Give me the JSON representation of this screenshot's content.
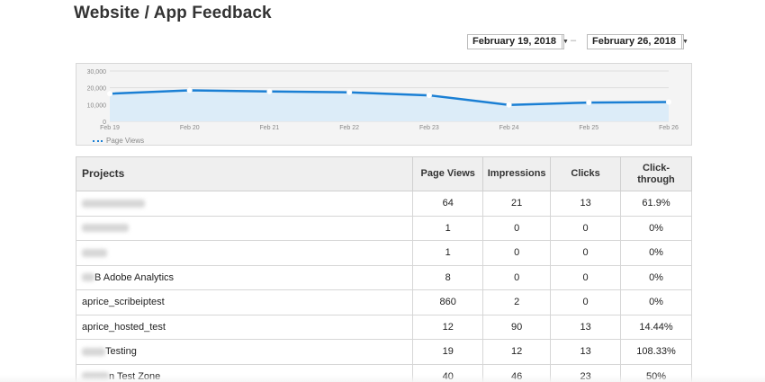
{
  "page": {
    "title": "Website / App Feedback"
  },
  "date_range": {
    "start": "February 19, 2018",
    "separator": "–",
    "end": "February 26, 2018"
  },
  "chart_data": {
    "type": "area",
    "x": [
      "Feb 19",
      "Feb 20",
      "Feb 21",
      "Feb 22",
      "Feb 23",
      "Feb 24",
      "Feb 25",
      "Feb 26"
    ],
    "series": [
      {
        "name": "Page Views",
        "values": [
          16500,
          18500,
          17800,
          17300,
          15500,
          9800,
          11200,
          11500
        ],
        "color": "#1a7fd4"
      }
    ],
    "yticks": [
      "0",
      "10,000",
      "20,000",
      "30,000"
    ],
    "ylim": [
      0,
      30000
    ],
    "grid": true,
    "legend": "bottom-left",
    "fill_color": "#dcecf8"
  },
  "table": {
    "headers": [
      "Projects",
      "Page Views",
      "Impressions",
      "Clicks",
      "Click-through"
    ],
    "rows": [
      {
        "prefix_redacted": true,
        "name": "",
        "page_views": "64",
        "impressions": "21",
        "clicks": "13",
        "ctr": "61.9%"
      },
      {
        "prefix_redacted": true,
        "name": "",
        "page_views": "1",
        "impressions": "0",
        "clicks": "0",
        "ctr": "0%"
      },
      {
        "prefix_redacted": true,
        "name": "",
        "page_views": "1",
        "impressions": "0",
        "clicks": "0",
        "ctr": "0%"
      },
      {
        "prefix_redacted": true,
        "name": "B Adobe Analytics",
        "page_views": "8",
        "impressions": "0",
        "clicks": "0",
        "ctr": "0%"
      },
      {
        "prefix_redacted": false,
        "name": "aprice_scribeiptest",
        "page_views": "860",
        "impressions": "2",
        "clicks": "0",
        "ctr": "0%"
      },
      {
        "prefix_redacted": false,
        "name": "aprice_hosted_test",
        "page_views": "12",
        "impressions": "90",
        "clicks": "13",
        "ctr": "14.44%"
      },
      {
        "prefix_redacted": true,
        "name": "Testing",
        "page_views": "19",
        "impressions": "12",
        "clicks": "13",
        "ctr": "108.33%"
      },
      {
        "prefix_redacted": true,
        "name": "n Test Zone",
        "page_views": "40",
        "impressions": "46",
        "clicks": "23",
        "ctr": "50%"
      }
    ]
  }
}
